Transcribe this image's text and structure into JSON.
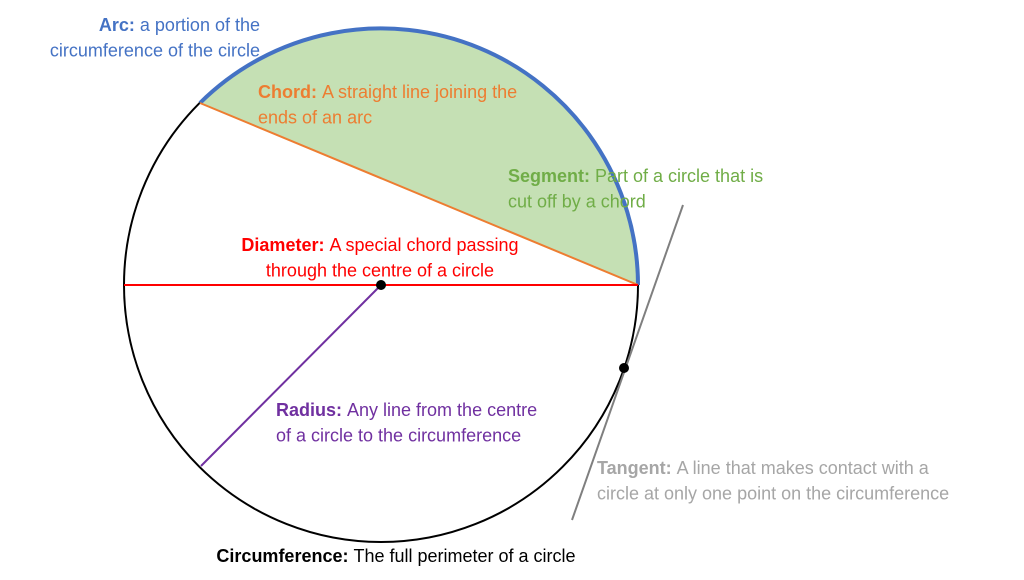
{
  "labels": [
    {
      "term": "Arc:",
      "lines": [
        "a portion of the",
        "circumference of the circle"
      ]
    },
    {
      "term": "Chord:",
      "lines": [
        "A straight line joining the",
        "ends of an arc"
      ]
    },
    {
      "term": "Segment:",
      "lines": [
        "Part of a circle that is",
        "cut off by a chord"
      ]
    },
    {
      "term": "Diameter:",
      "lines": [
        "A special chord passing",
        "through the centre of a circle"
      ]
    },
    {
      "term": "Radius:",
      "lines": [
        "Any line from the centre",
        "of a circle to the circumference"
      ]
    },
    {
      "term": "Tangent:",
      "lines": [
        "A line that makes contact with a",
        "circle at only one point on the circumference"
      ]
    },
    {
      "term": "Circumference:",
      "lines": [
        "The full perimeter of a circle"
      ]
    }
  ]
}
